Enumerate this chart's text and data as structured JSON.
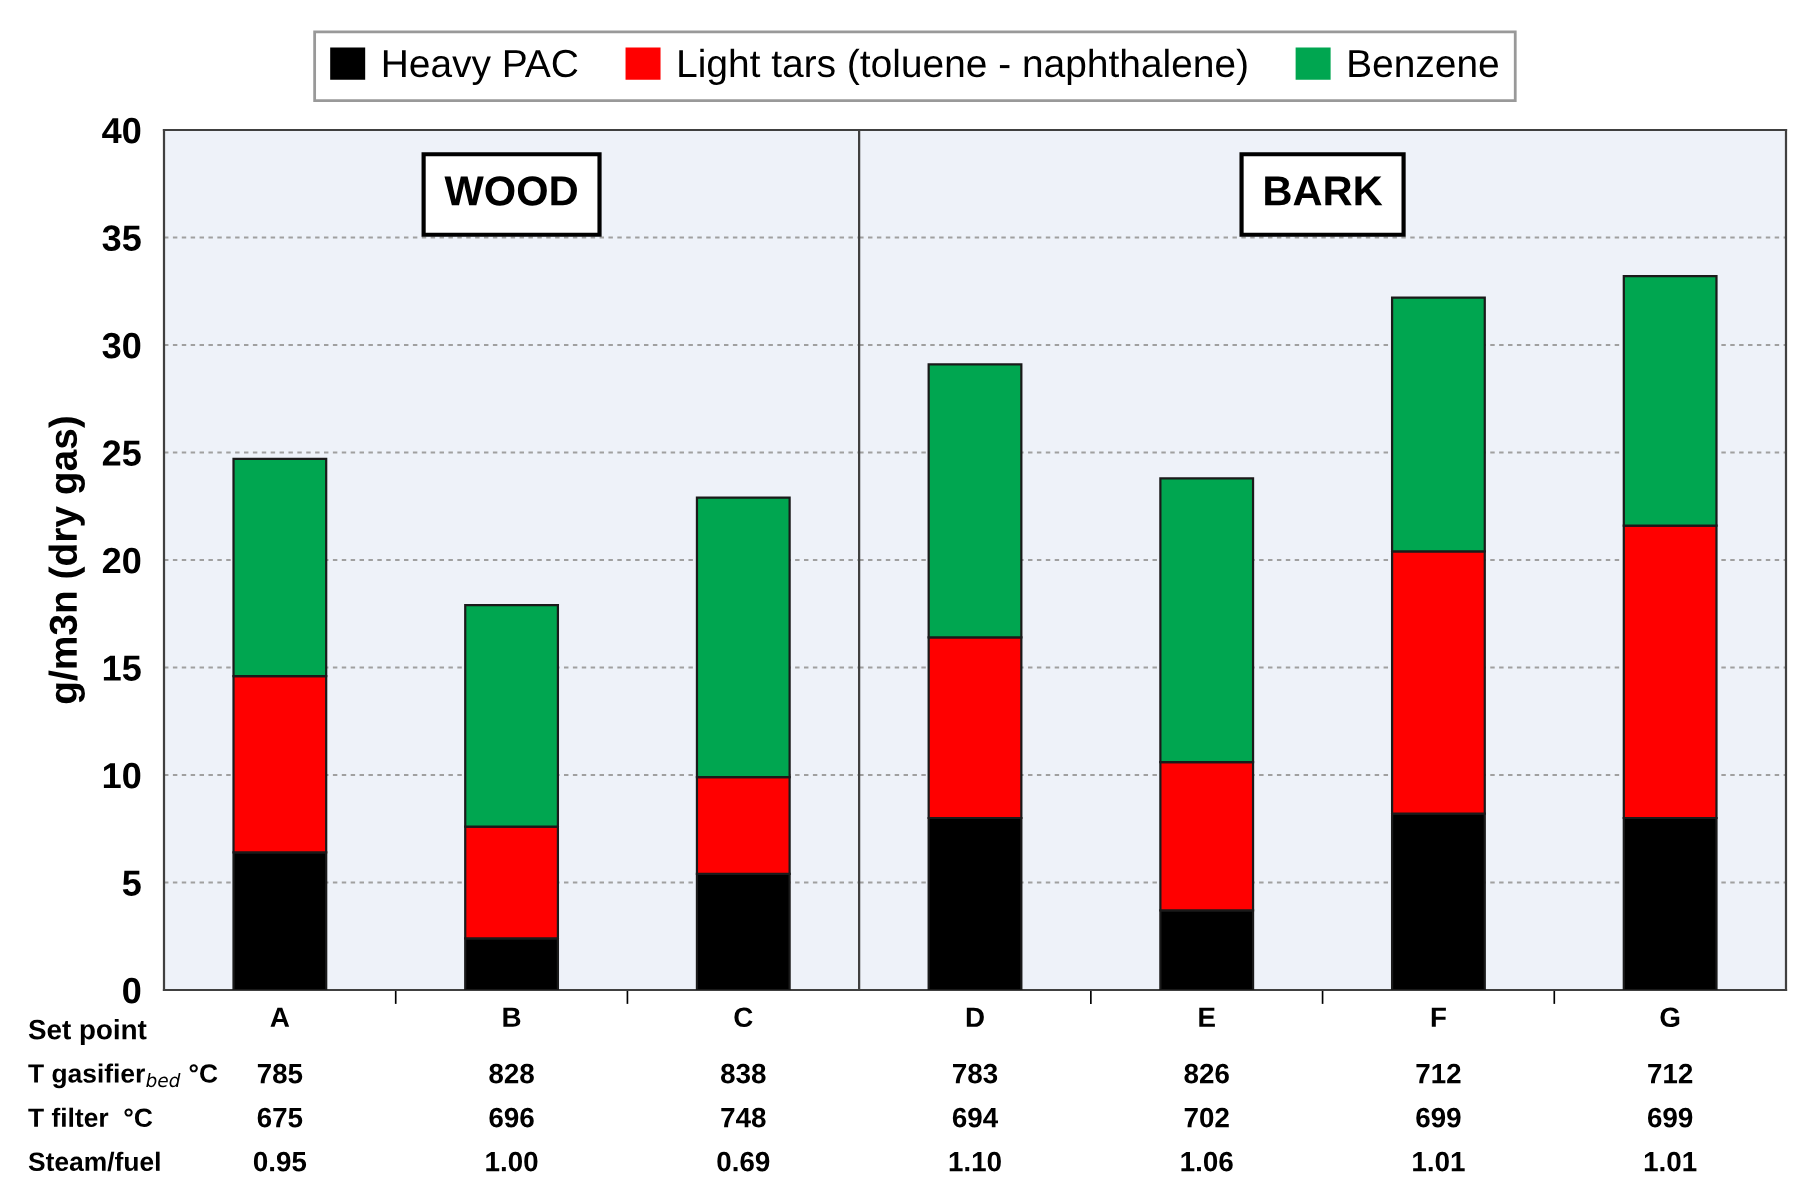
{
  "chart_data": [
    {
      "type": "bar",
      "stacked": true,
      "ylabel": "g/m3n (dry gas)",
      "xlabel": "Set point",
      "categories": [
        "A",
        "B",
        "C"
      ],
      "series": [
        {
          "name": "Heavy PAC",
          "color": "#000000",
          "values": [
            6.4,
            2.4,
            5.4
          ]
        },
        {
          "name": "Light tars (toluene - naphthalene)",
          "color": "#ff0000",
          "values": [
            8.2,
            5.2,
            4.5
          ]
        },
        {
          "name": "Benzene",
          "color": "#00a650",
          "values": [
            10.1,
            10.3,
            13.0
          ]
        }
      ],
      "ylim": [
        0,
        40
      ],
      "yticks": [
        0,
        5,
        10,
        15,
        20,
        25,
        30,
        35,
        40
      ],
      "grid": "y",
      "legend": "top",
      "annotations": [
        "WOOD",
        "T gasifier$_{bed}$ °C",
        "785",
        "828",
        "838",
        "T filter  °C",
        "675",
        "696",
        "748",
        "Steam/fuel",
        "0.95",
        "1.00",
        "0.69"
      ]
    },
    {
      "type": "bar",
      "stacked": true,
      "categories": [
        "D",
        "E",
        "F",
        "G"
      ],
      "series": [
        {
          "color": "#000000",
          "values": [
            8.0,
            3.7,
            8.2,
            8.0
          ]
        },
        {
          "color": "#ff0000",
          "values": [
            8.4,
            6.9,
            12.2,
            13.6
          ]
        },
        {
          "color": "#00a650",
          "values": [
            12.7,
            13.2,
            11.8,
            11.6
          ]
        }
      ],
      "ylim": [
        0,
        40
      ],
      "yticks": [
        0,
        5,
        10,
        15,
        20,
        25,
        30,
        35,
        40
      ],
      "grid": "y",
      "tick_labels": "x",
      "annotations": [
        "BARK",
        "783",
        "826",
        "712",
        "712",
        "694",
        "702",
        "699",
        "699",
        "1.10",
        "1.06",
        "1.01",
        "1.01"
      ]
    }
  ]
}
